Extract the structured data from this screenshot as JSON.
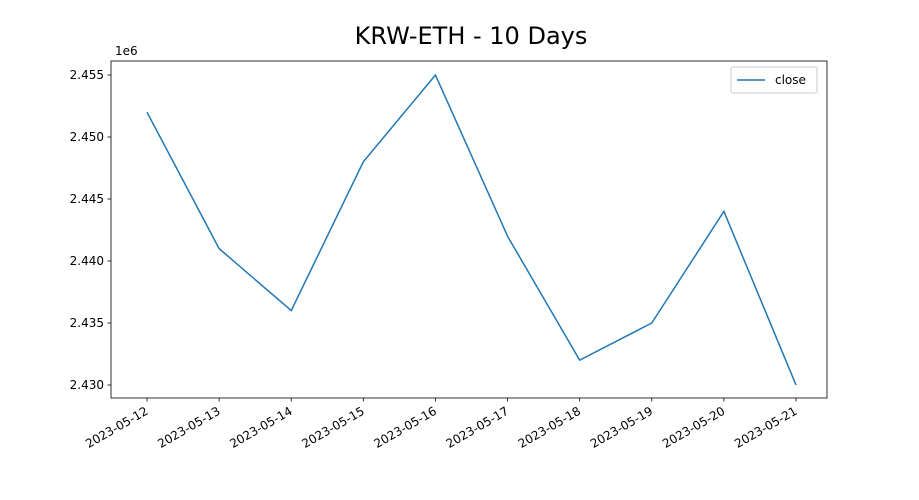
{
  "chart_data": {
    "type": "line",
    "title": "KRW-ETH - 10 Days",
    "x": [
      "2023-05-12",
      "2023-05-13",
      "2023-05-14",
      "2023-05-15",
      "2023-05-16",
      "2023-05-17",
      "2023-05-18",
      "2023-05-19",
      "2023-05-20",
      "2023-05-21"
    ],
    "series": [
      {
        "name": "close",
        "color": "#1f77b4",
        "values": [
          2.452,
          2.441,
          2.436,
          2.448,
          2.455,
          2.442,
          2.432,
          2.435,
          2.444,
          2.43
        ]
      }
    ],
    "y_offset_label": "1e6",
    "ylim": [
      2.42895,
      2.45613
    ],
    "yticks": [
      {
        "value": 2.43,
        "label": "2.430"
      },
      {
        "value": 2.435,
        "label": "2.435"
      },
      {
        "value": 2.44,
        "label": "2.440"
      },
      {
        "value": 2.445,
        "label": "2.445"
      },
      {
        "value": 2.45,
        "label": "2.450"
      },
      {
        "value": 2.455,
        "label": "2.455"
      }
    ],
    "xticks": [
      "2023-05-12",
      "2023-05-13",
      "2023-05-14",
      "2023-05-15",
      "2023-05-16",
      "2023-05-17",
      "2023-05-18",
      "2023-05-19",
      "2023-05-20",
      "2023-05-21"
    ],
    "legend": "upper right",
    "grid": false
  }
}
